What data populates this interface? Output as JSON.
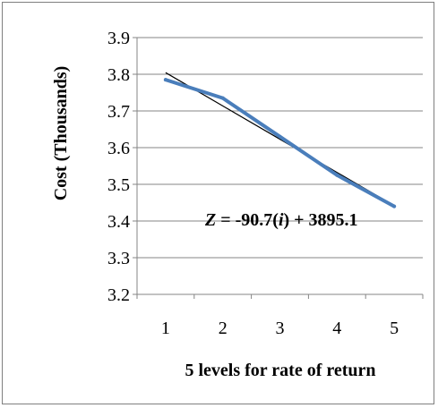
{
  "chart_data": {
    "type": "line",
    "title": "",
    "xlabel": "5 levels for rate of return",
    "ylabel": "Cost (Thousands)",
    "categories": [
      "1",
      "2",
      "3",
      "4",
      "5"
    ],
    "x": [
      1,
      2,
      3,
      4,
      5
    ],
    "ylim": [
      3.2,
      3.9
    ],
    "y_ticks": [
      "3.2",
      "3.3",
      "3.4",
      "3.5",
      "3.6",
      "3.7",
      "3.8",
      "3.9"
    ],
    "grid": true,
    "series": [
      {
        "values": [
          3.785,
          3.735,
          3.63,
          3.525,
          3.44
        ],
        "color": "#4a7ebb"
      }
    ],
    "trendline": {
      "values": [
        3.8044,
        3.7137,
        3.623,
        3.5323,
        3.4416
      ],
      "color": "#000000",
      "equation": {
        "prefix": "Z",
        "middle": " = -90.7(",
        "var": "i",
        "suffix": ") + 3895.1"
      }
    }
  }
}
